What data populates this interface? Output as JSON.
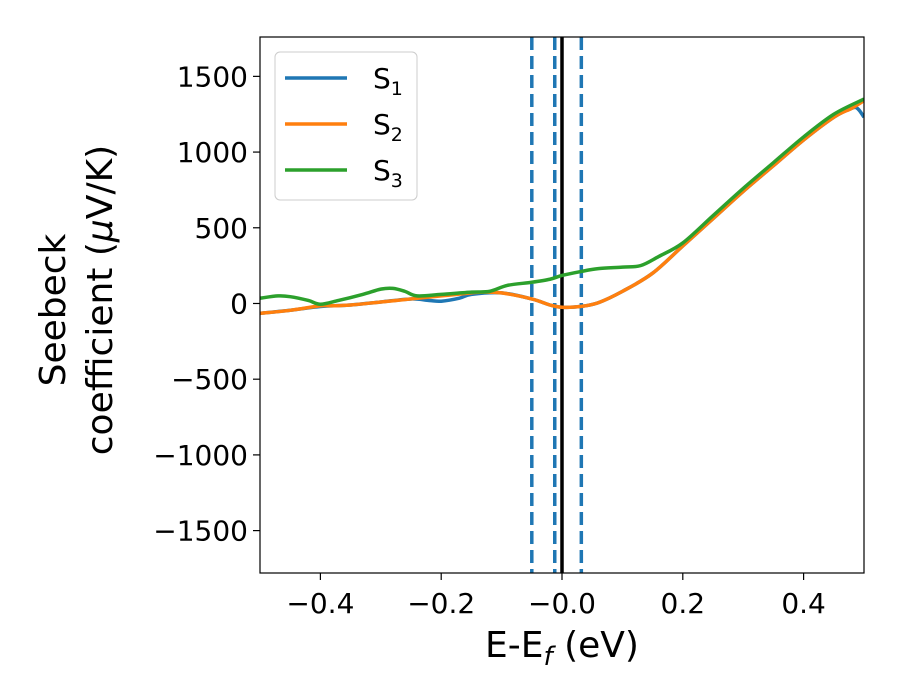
{
  "chart_data": {
    "type": "line",
    "xlabel": {
      "base": "E-E",
      "sub": "f",
      "suffix": " (eV)"
    },
    "ylabel": {
      "line1": "Seebeck",
      "line2_pre": "coefficient  (",
      "line2_mu": "μ",
      "line2_post": "V/K)"
    },
    "xlim": [
      -0.5,
      0.5
    ],
    "ylim": [
      -1780,
      1760
    ],
    "xticks": [
      -0.4,
      -0.2,
      0.0,
      0.2,
      0.4
    ],
    "xtick_labels": [
      "−0.4",
      "−0.2",
      "−0.0",
      "0.2",
      "0.4"
    ],
    "yticks": [
      -1500,
      -1000,
      -500,
      0,
      500,
      1000,
      1500
    ],
    "ytick_labels": [
      "−1500",
      "−1000",
      "−500",
      "0",
      "500",
      "1000",
      "1500"
    ],
    "grid": false,
    "legend": {
      "location": "top-left",
      "entries": [
        {
          "base": "S",
          "sub": "1"
        },
        {
          "base": "S",
          "sub": "2"
        },
        {
          "base": "S",
          "sub": "3"
        }
      ]
    },
    "vertical_lines": [
      {
        "x": -0.05,
        "style": "dashed",
        "color": "#1f77b4"
      },
      {
        "x": -0.012,
        "style": "dashed",
        "color": "#1f77b4"
      },
      {
        "x": 0.0,
        "style": "solid",
        "color": "#000000"
      },
      {
        "x": 0.032,
        "style": "dashed",
        "color": "#1f77b4"
      }
    ],
    "series": [
      {
        "color": "#1f77b4",
        "points": [
          [
            -0.5,
            -65
          ],
          [
            -0.45,
            -45
          ],
          [
            -0.4,
            -20
          ],
          [
            -0.35,
            -10
          ],
          [
            -0.3,
            10
          ],
          [
            -0.25,
            30
          ],
          [
            -0.22,
            20
          ],
          [
            -0.2,
            15
          ],
          [
            -0.17,
            35
          ],
          [
            -0.15,
            60
          ],
          [
            -0.1,
            70
          ],
          [
            -0.05,
            30
          ],
          [
            -0.02,
            -10
          ],
          [
            0.0,
            -25
          ],
          [
            0.03,
            -20
          ],
          [
            0.06,
            5
          ],
          [
            0.1,
            80
          ],
          [
            0.15,
            200
          ],
          [
            0.2,
            380
          ],
          [
            0.25,
            560
          ],
          [
            0.3,
            740
          ],
          [
            0.35,
            910
          ],
          [
            0.4,
            1080
          ],
          [
            0.45,
            1230
          ],
          [
            0.48,
            1290
          ],
          [
            0.49,
            1285
          ],
          [
            0.5,
            1230
          ]
        ]
      },
      {
        "color": "#ff7f0e",
        "points": [
          [
            -0.5,
            -65
          ],
          [
            -0.45,
            -45
          ],
          [
            -0.4,
            -15
          ],
          [
            -0.38,
            -15
          ],
          [
            -0.35,
            -10
          ],
          [
            -0.3,
            10
          ],
          [
            -0.25,
            30
          ],
          [
            -0.2,
            50
          ],
          [
            -0.15,
            70
          ],
          [
            -0.13,
            75
          ],
          [
            -0.1,
            70
          ],
          [
            -0.05,
            30
          ],
          [
            -0.02,
            -10
          ],
          [
            0.0,
            -25
          ],
          [
            0.03,
            -20
          ],
          [
            0.06,
            5
          ],
          [
            0.1,
            80
          ],
          [
            0.15,
            200
          ],
          [
            0.2,
            380
          ],
          [
            0.25,
            560
          ],
          [
            0.3,
            740
          ],
          [
            0.35,
            910
          ],
          [
            0.4,
            1080
          ],
          [
            0.45,
            1230
          ],
          [
            0.48,
            1290
          ],
          [
            0.5,
            1340
          ]
        ]
      },
      {
        "color": "#2ca02c",
        "points": [
          [
            -0.5,
            35
          ],
          [
            -0.47,
            50
          ],
          [
            -0.45,
            45
          ],
          [
            -0.42,
            20
          ],
          [
            -0.4,
            -5
          ],
          [
            -0.37,
            20
          ],
          [
            -0.33,
            60
          ],
          [
            -0.3,
            95
          ],
          [
            -0.28,
            100
          ],
          [
            -0.26,
            80
          ],
          [
            -0.24,
            50
          ],
          [
            -0.2,
            60
          ],
          [
            -0.15,
            75
          ],
          [
            -0.12,
            80
          ],
          [
            -0.09,
            120
          ],
          [
            -0.05,
            140
          ],
          [
            -0.02,
            160
          ],
          [
            0.0,
            185
          ],
          [
            0.03,
            210
          ],
          [
            0.06,
            230
          ],
          [
            0.1,
            240
          ],
          [
            0.13,
            250
          ],
          [
            0.16,
            310
          ],
          [
            0.2,
            400
          ],
          [
            0.25,
            580
          ],
          [
            0.3,
            760
          ],
          [
            0.35,
            930
          ],
          [
            0.4,
            1100
          ],
          [
            0.45,
            1250
          ],
          [
            0.5,
            1350
          ]
        ]
      }
    ]
  }
}
